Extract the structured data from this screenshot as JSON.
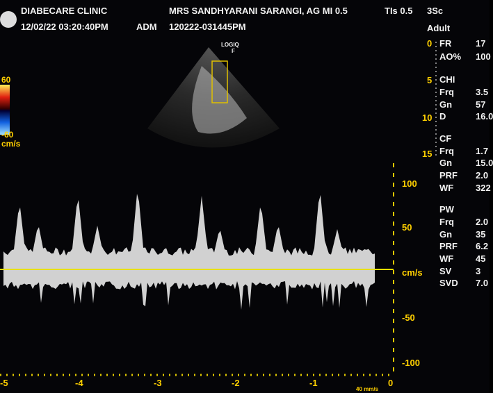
{
  "header": {
    "clinic": "DIABECARE CLINIC",
    "datetime": "12/02/22 03:20:40PM",
    "operator": "ADM",
    "exam_id": "120222-031445PM",
    "patient": "MRS SANDHYARANI SARANGI, AG MI 0.5",
    "tis": "TIs 0.5",
    "probe": "3Sc",
    "preset": "Adult"
  },
  "color_bar": {
    "max": "60",
    "min": "-60",
    "unit": "cm/s"
  },
  "image": {
    "brand": "LOGIQ",
    "focus": "F"
  },
  "depth_ticks": [
    "0",
    "5",
    "10",
    "15"
  ],
  "params": [
    {
      "label": "FR",
      "value": "17"
    },
    {
      "label": "AO%",
      "value": "100"
    }
  ],
  "groups": [
    {
      "title": "CHI",
      "rows": [
        {
          "label": "Frq",
          "value": "3.5"
        },
        {
          "label": "Gn",
          "value": "57"
        },
        {
          "label": "D",
          "value": "16.0"
        }
      ]
    },
    {
      "title": "CF",
      "rows": [
        {
          "label": "Frq",
          "value": "1.7"
        },
        {
          "label": "Gn",
          "value": "15.0"
        },
        {
          "label": "PRF",
          "value": "2.0"
        },
        {
          "label": "WF",
          "value": "322"
        }
      ]
    },
    {
      "title": "PW",
      "rows": [
        {
          "label": "Frq",
          "value": "2.0"
        },
        {
          "label": "Gn",
          "value": "35"
        },
        {
          "label": "PRF",
          "value": "6.2"
        },
        {
          "label": "WF",
          "value": "45"
        },
        {
          "label": "SV",
          "value": "3"
        },
        {
          "label": "SVD",
          "value": "7.0"
        }
      ]
    }
  ],
  "doppler_scale": [
    "100",
    "50",
    "cm/s",
    "-50",
    "-100"
  ],
  "time_axis": {
    "ticks": [
      "-5",
      "-4",
      "-3",
      "-2",
      "-1",
      "0"
    ],
    "sweep": "40 mm/s"
  }
}
